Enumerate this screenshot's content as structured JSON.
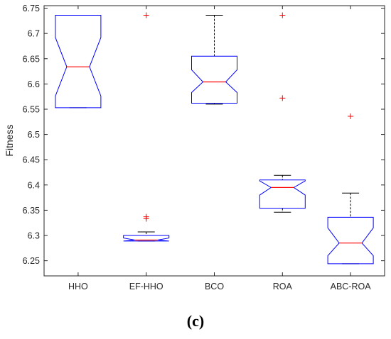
{
  "chart_data": {
    "type": "boxplot",
    "notched": true,
    "ylabel": "Fitness",
    "ylim": [
      6.22,
      6.755
    ],
    "yticks": [
      6.25,
      6.3,
      6.35,
      6.4,
      6.45,
      6.5,
      6.55,
      6.6,
      6.65,
      6.7,
      6.75
    ],
    "ytick_labels": [
      "6.25",
      "6.3",
      "6.35",
      "6.4",
      "6.45",
      "6.5",
      "6.55",
      "6.6",
      "6.65",
      "6.7",
      "6.75"
    ],
    "categories": [
      "HHO",
      "EF-HHO",
      "BCO",
      "ROA",
      "ABC-ROA"
    ],
    "boxes": [
      {
        "name": "HHO",
        "whisker_low": 6.553,
        "q1": 6.553,
        "median": 6.634,
        "q3": 6.736,
        "whisker_high": 6.736,
        "notch_low": 6.576,
        "notch_high": 6.692,
        "outliers": []
      },
      {
        "name": "EF-HHO",
        "whisker_low": 6.289,
        "q1": 6.289,
        "median": 6.291,
        "q3": 6.3,
        "whisker_high": 6.307,
        "notch_low": 6.289,
        "notch_high": 6.295,
        "outliers": [
          6.333,
          6.337,
          6.736
        ]
      },
      {
        "name": "BCO",
        "whisker_low": 6.56,
        "q1": 6.562,
        "median": 6.604,
        "q3": 6.655,
        "whisker_high": 6.736,
        "notch_low": 6.583,
        "notch_high": 6.628,
        "outliers": []
      },
      {
        "name": "ROA",
        "whisker_low": 6.346,
        "q1": 6.354,
        "median": 6.395,
        "q3": 6.41,
        "whisker_high": 6.419,
        "notch_low": 6.38,
        "notch_high": 6.408,
        "outliers": [
          6.572,
          6.736
        ]
      },
      {
        "name": "ABC-ROA",
        "whisker_low": 6.244,
        "q1": 6.244,
        "median": 6.285,
        "q3": 6.336,
        "whisker_high": 6.384,
        "notch_low": 6.26,
        "notch_high": 6.315,
        "outliers": [
          6.536
        ]
      }
    ],
    "colors": {
      "box": "#0000ff",
      "median": "#ff0000",
      "whisker": "#000000",
      "outlier": "#ff0000",
      "axis": "#262626"
    },
    "grid": false,
    "legend": "none"
  },
  "caption": "(c)"
}
